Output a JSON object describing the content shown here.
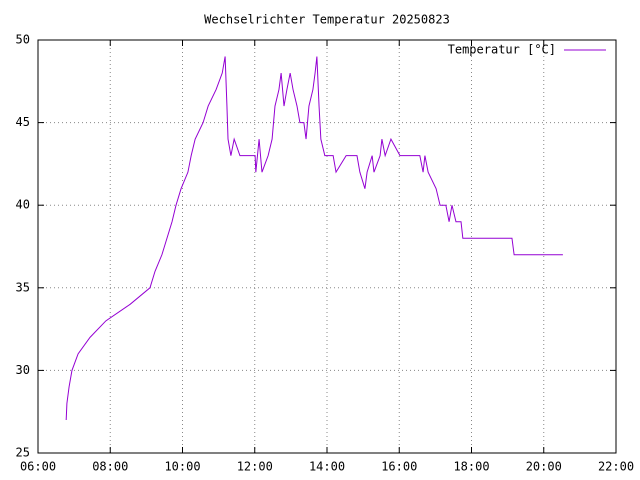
{
  "chart_data": {
    "type": "line",
    "title": "Wechselrichter Temperatur 20250823",
    "x": [
      6.78,
      6.8,
      6.86,
      6.94,
      7.11,
      7.44,
      7.88,
      8.55,
      9.1,
      9.24,
      9.43,
      9.57,
      9.71,
      9.82,
      9.96,
      10.15,
      10.24,
      10.35,
      10.57,
      10.71,
      10.93,
      11.1,
      11.18,
      11.23,
      11.26,
      11.34,
      11.43,
      11.59,
      12.01,
      12.03,
      12.12,
      12.2,
      12.37,
      12.48,
      12.56,
      12.67,
      12.73,
      12.81,
      12.89,
      12.98,
      13.06,
      13.17,
      13.25,
      13.36,
      13.42,
      13.5,
      13.61,
      13.67,
      13.72,
      13.78,
      13.83,
      13.94,
      14.17,
      14.25,
      14.53,
      14.83,
      14.91,
      15.05,
      15.11,
      15.25,
      15.3,
      15.47,
      15.52,
      15.61,
      15.77,
      16.02,
      16.57,
      16.66,
      16.71,
      16.8,
      17.02,
      17.13,
      17.29,
      17.38,
      17.46,
      17.57,
      17.71,
      17.76,
      18.24,
      19.12,
      19.18,
      20.53
    ],
    "series": [
      {
        "name": "Temperatur [°C]",
        "color": "#9400d3",
        "values": [
          27,
          28,
          29,
          30,
          31,
          32,
          33,
          34,
          35,
          36,
          37,
          38,
          39,
          40,
          41,
          42,
          43,
          44,
          45,
          46,
          47,
          48,
          49,
          46,
          44,
          43,
          44,
          43,
          43,
          42,
          44,
          42,
          43,
          44,
          46,
          47,
          48,
          46,
          47,
          48,
          47,
          46,
          45,
          45,
          44,
          46,
          47,
          48,
          49,
          46,
          44,
          43,
          43,
          42,
          43,
          43,
          42,
          41,
          42,
          43,
          42,
          43,
          44,
          43,
          44,
          43,
          43,
          42,
          43,
          42,
          41,
          40,
          40,
          39,
          40,
          39,
          39,
          38,
          38,
          38,
          37,
          37
        ]
      }
    ],
    "xlim": [
      6,
      22
    ],
    "xticks": [
      {
        "value": 6,
        "label": "06:00"
      },
      {
        "value": 8,
        "label": "08:00"
      },
      {
        "value": 10,
        "label": "10:00"
      },
      {
        "value": 12,
        "label": "12:00"
      },
      {
        "value": 14,
        "label": "14:00"
      },
      {
        "value": 16,
        "label": "16:00"
      },
      {
        "value": 18,
        "label": "18:00"
      },
      {
        "value": 20,
        "label": "20:00"
      },
      {
        "value": 22,
        "label": "22:00"
      }
    ],
    "ylim": [
      25,
      50
    ],
    "yticks": [
      25,
      30,
      35,
      40,
      45,
      50
    ],
    "grid": true,
    "legend": "top-right"
  }
}
